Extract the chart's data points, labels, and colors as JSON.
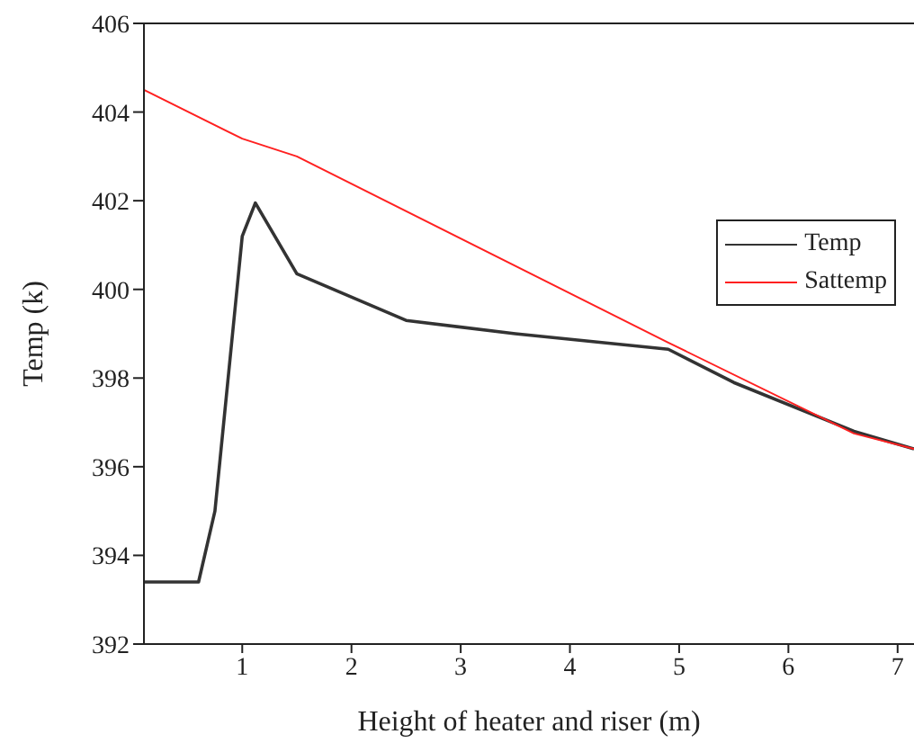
{
  "chart_data": {
    "type": "line",
    "xlabel": "Height of heater and riser (m)",
    "ylabel": "Temp (k)",
    "xlim": [
      0.1,
      7.15
    ],
    "xticks": [
      1,
      2,
      3,
      4,
      5,
      6,
      7
    ],
    "ylim": [
      392,
      406
    ],
    "yticks": [
      392,
      394,
      396,
      398,
      400,
      402,
      404,
      406
    ],
    "grid": false,
    "legend": "right",
    "marker": "none",
    "line_style": "solid",
    "series": [
      {
        "name": "Temp",
        "color": "#333333",
        "x": [
          0.1,
          0.6,
          0.75,
          1.0,
          1.12,
          1.5,
          2.5,
          3.5,
          4.9,
          5.5,
          6.6,
          7.15
        ],
        "values": [
          393.4,
          393.4,
          395,
          401.2,
          401.95,
          400.35,
          399.3,
          399.0,
          398.65,
          397.9,
          396.8,
          396.4
        ]
      },
      {
        "name": "Sattemp",
        "color": "#ff2020",
        "x": [
          0.1,
          1.0,
          1.5,
          4.9,
          6.6,
          7.15
        ],
        "values": [
          404.5,
          403.4,
          403.0,
          398.8,
          396.75,
          396.4
        ]
      }
    ]
  }
}
